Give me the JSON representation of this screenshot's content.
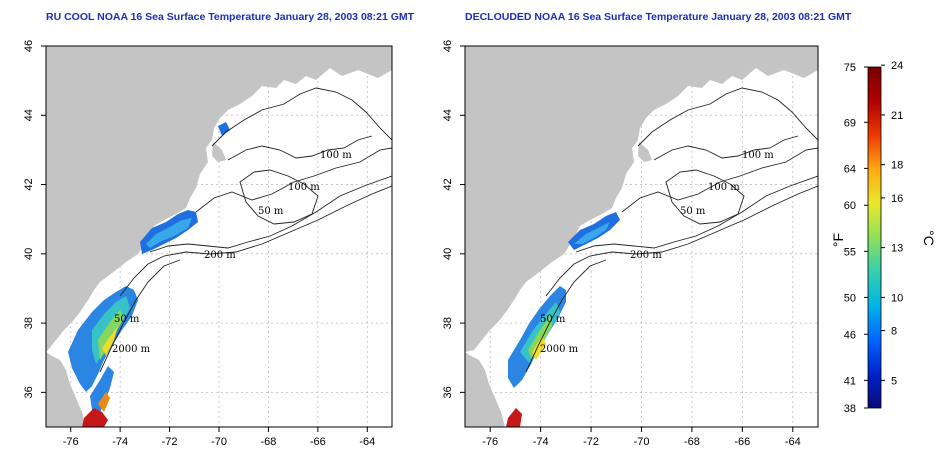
{
  "panels": [
    {
      "title": "RU COOL NOAA 16 Sea Surface Temperature January 28, 2003 08:21 GMT",
      "depth_labels": [
        "100 m",
        "100 m",
        "50 m",
        "200 m",
        "50 m",
        "2000 m"
      ]
    },
    {
      "title": "DECLOUDED NOAA 16 Sea Surface Temperature January 28, 2003 08:21 GMT",
      "depth_labels": [
        "100 m",
        "100 m",
        "50 m",
        "200 m",
        "50 m",
        "2000 m"
      ]
    }
  ],
  "axes": {
    "lat_ticks": [
      "46",
      "44",
      "42",
      "40",
      "38",
      "36"
    ],
    "lon_ticks": [
      "-76",
      "-74",
      "-72",
      "-70",
      "-68",
      "-66",
      "-64"
    ],
    "lat_range": [
      35,
      46
    ],
    "lon_range": [
      -77,
      -63
    ]
  },
  "colorbar": {
    "fahrenheit_ticks": [
      "75",
      "69",
      "64",
      "60",
      "55",
      "50",
      "46",
      "41",
      "38"
    ],
    "celsius_ticks": [
      "24",
      "21",
      "18",
      "16",
      "13",
      "10",
      "8",
      "5"
    ],
    "unit_f": "°F",
    "unit_c": "°C",
    "colors": [
      "#0a0a7a",
      "#0022cc",
      "#0066ff",
      "#00b4e6",
      "#35d0b0",
      "#8ee05a",
      "#e9e82a",
      "#ffaa10",
      "#ee3a00",
      "#b00000",
      "#780000"
    ]
  },
  "colors": {
    "land": "#c4c4c4",
    "ocean": "#ffffff",
    "grid": "#bdbdbd",
    "title": "#1c2fb8"
  }
}
